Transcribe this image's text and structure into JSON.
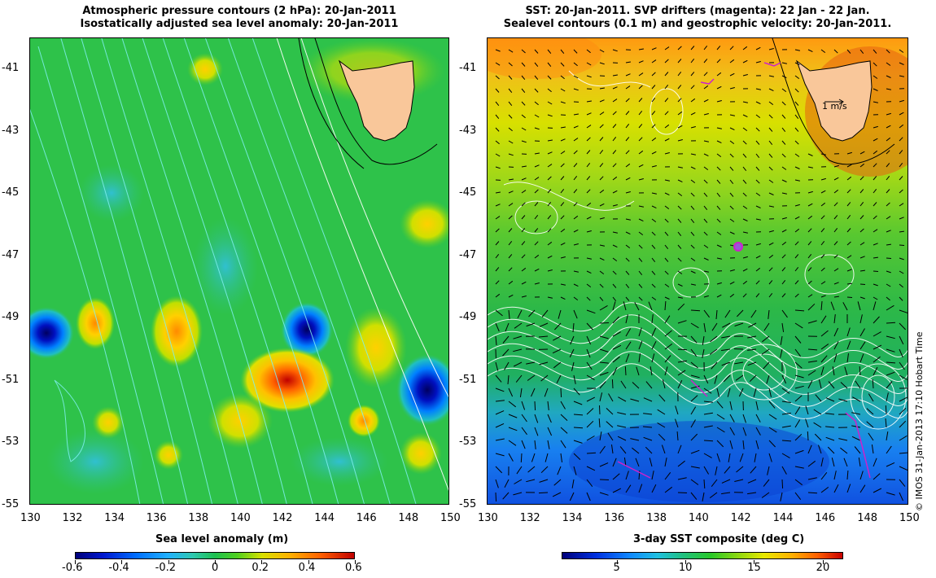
{
  "left_map": {
    "title_line1": "Atmospheric pressure contours (2 hPa): 20-Jan-2011",
    "title_line2": "Isostatically adjusted sea level anomaly: 20-Jan-2011",
    "colorbar_title": "Sea level anomaly (m)",
    "colorbar_ticks": [
      "-0.6",
      "-0.4",
      "-0.2",
      "0",
      "0.2",
      "0.4",
      "0.6"
    ],
    "colorbar_range": [
      -0.6,
      0.6
    ]
  },
  "right_map": {
    "title_line1": "SST: 20-Jan-2011. SVP drifters (magenta): 22 Jan - 22 Jan.",
    "title_line2": "Sealevel contours (0.1 m) and geostrophic velocity: 20-Jan-2011.",
    "colorbar_title": "3-day SST composite (deg C)",
    "colorbar_ticks": [
      "5",
      "10",
      "15",
      "20"
    ],
    "colorbar_tick_values": [
      5,
      10,
      15,
      20
    ],
    "colorbar_range": [
      1,
      21.5
    ],
    "velocity_scale_label": "1 m/s",
    "drifter_marker_lon": 142.0,
    "drifter_marker_lat": -46.7
  },
  "axes": {
    "lon_min": 130,
    "lon_max": 150,
    "lat_min": -55,
    "lat_max": -40,
    "lon_ticks": [
      "130",
      "132",
      "134",
      "136",
      "138",
      "140",
      "142",
      "144",
      "146",
      "148",
      "150"
    ],
    "lon_tick_values": [
      130,
      132,
      134,
      136,
      138,
      140,
      142,
      144,
      146,
      148,
      150
    ],
    "lat_ticks": [
      "-41",
      "-43",
      "-45",
      "-47",
      "-49",
      "-51",
      "-53",
      "-55"
    ],
    "lat_tick_values": [
      -41,
      -43,
      -45,
      -47,
      -49,
      -51,
      -53,
      -55
    ]
  },
  "credit": "© IMOS 31-Jan-2013 17:10 Hobart Time",
  "colors": {
    "land": "#f9c79a",
    "drifter": "#cc22cc",
    "pressure_contour": "#80f0f0",
    "sealevel_contour": "#ffffff"
  }
}
